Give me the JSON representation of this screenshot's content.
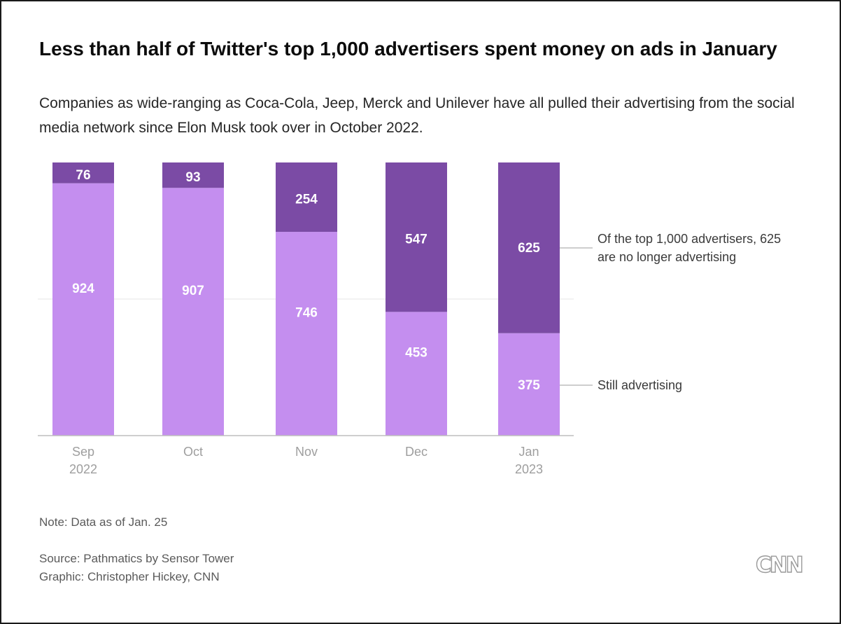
{
  "title": "Less than half of Twitter's top 1,000 advertisers spent money on ads in January",
  "subtitle": "Companies as wide-ranging as Coca-Cola, Jeep, Merck and Unilever have all pulled their advertising from the social media network since Elon Musk took over in October 2022.",
  "chart_data": {
    "type": "bar",
    "stacked": true,
    "categories": [
      [
        "Sep",
        "2022"
      ],
      [
        "Oct"
      ],
      [
        "Nov"
      ],
      [
        "Dec"
      ],
      [
        "Jan",
        "2023"
      ]
    ],
    "series": [
      {
        "name": "Still advertising",
        "values": [
          924,
          907,
          746,
          453,
          375
        ],
        "color": "#c48eef"
      },
      {
        "name": "no longer advertising",
        "values": [
          76,
          93,
          254,
          547,
          625
        ],
        "color": "#7b4ba5"
      }
    ],
    "ylim": [
      0,
      1000
    ],
    "gridlines": [
      500
    ],
    "annotations": {
      "top": [
        "Of the top 1,000 advertisers, 625",
        "are no longer advertising"
      ],
      "bottom": [
        "Still advertising"
      ]
    },
    "xlabel": "",
    "ylabel": ""
  },
  "footer": {
    "note": "Note: Data as of Jan. 25",
    "source": "Source: Pathmatics by Sensor Tower",
    "graphic": "Graphic: Christopher Hickey, CNN",
    "brand": "CNN"
  }
}
